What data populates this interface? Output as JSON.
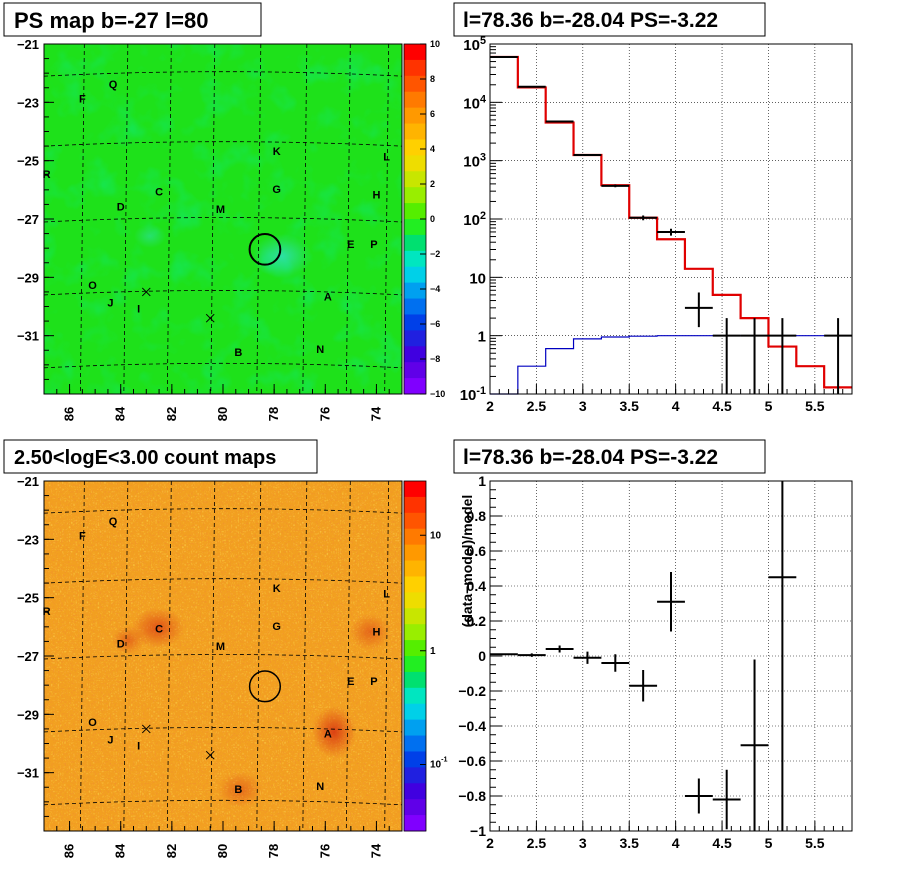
{
  "panels": {
    "top_left_title": "PS map b=-27 l=80",
    "top_right_title": "l=78.36 b=-28.04 PS=-3.22",
    "bottom_left_title": "2.50<logE<3.00 count maps",
    "bottom_right_title": "l=78.36 b=-28.04 PS=-3.22"
  },
  "chart_data": [
    {
      "type": "heatmap",
      "name": "PS map",
      "title": "PS map b=-27 l=80",
      "x_ticks": [
        "86",
        "84",
        "82",
        "80",
        "78",
        "76",
        "74"
      ],
      "y_ticks": [
        "-21",
        "-23",
        "-25",
        "-27",
        "-29",
        "-31"
      ],
      "xlim": [
        87,
        73
      ],
      "ylim": [
        -33,
        -21
      ],
      "colorbar_ticks": [
        "10",
        "8",
        "6",
        "4",
        "2",
        "0",
        "-2",
        "-4",
        "-6",
        "-8",
        "-10"
      ],
      "colorbar_range": [
        -10,
        10
      ],
      "source_labels": [
        {
          "label": "Q",
          "l": 84.3,
          "b": -22.5
        },
        {
          "label": "F",
          "l": 85.5,
          "b": -23.0
        },
        {
          "label": "K",
          "l": 77.9,
          "b": -24.8
        },
        {
          "label": "L",
          "l": 73.6,
          "b": -25.0
        },
        {
          "label": "R",
          "l": 86.9,
          "b": -25.6
        },
        {
          "label": "C",
          "l": 82.5,
          "b": -26.2
        },
        {
          "label": "G",
          "l": 77.9,
          "b": -26.1
        },
        {
          "label": "H",
          "l": 74.0,
          "b": -26.3
        },
        {
          "label": "D",
          "l": 84.0,
          "b": -26.7
        },
        {
          "label": "M",
          "l": 80.1,
          "b": -26.8
        },
        {
          "label": "E",
          "l": 75.0,
          "b": -28.0
        },
        {
          "label": "P",
          "l": 74.1,
          "b": -28.0
        },
        {
          "label": "O",
          "l": 85.1,
          "b": -29.4
        },
        {
          "label": "A",
          "l": 75.9,
          "b": -29.8
        },
        {
          "label": "J",
          "l": 84.4,
          "b": -30.0
        },
        {
          "label": "I",
          "l": 83.3,
          "b": -30.2
        },
        {
          "label": "B",
          "l": 79.4,
          "b": -31.7
        },
        {
          "label": "N",
          "l": 76.2,
          "b": -31.6
        }
      ],
      "crosses": [
        {
          "l": 83.0,
          "b": -29.5
        },
        {
          "l": 80.5,
          "b": -30.4
        }
      ],
      "circle": {
        "l": 78.36,
        "b": -28.04,
        "radius_deg": 0.6
      }
    },
    {
      "type": "line",
      "name": "counts spectrum",
      "title": "l=78.36 b=-28.04 PS=-3.22",
      "xlim": [
        2,
        5.9
      ],
      "ylim": [
        0.1,
        100000
      ],
      "ylog": true,
      "x_ticks": [
        "2",
        "2.5",
        "3",
        "3.5",
        "4",
        "4.5",
        "5",
        "5.5"
      ],
      "y_ticks": [
        "10^-1",
        "1",
        "10",
        "10^2",
        "10^3",
        "10^4",
        "10^5"
      ],
      "grid": true,
      "bin_edges": [
        2.0,
        2.3,
        2.6,
        2.9,
        3.2,
        3.5,
        3.8,
        4.1,
        4.4,
        4.7,
        5.0,
        5.3,
        5.6,
        5.9
      ],
      "model_total": [
        60000,
        18000,
        4500,
        1250,
        380,
        105,
        45,
        14,
        5,
        2,
        0.65,
        0.3,
        0.13
      ],
      "model_ps": [
        0.1,
        0.3,
        0.6,
        0.88,
        0.95,
        0.98,
        1.0,
        1.0,
        1.0,
        1.0,
        1.0,
        1.0,
        1.0
      ],
      "data_points": [
        {
          "x": 2.15,
          "y": 60000,
          "xerr": 0.15,
          "ylo": 59500,
          "yhi": 60500
        },
        {
          "x": 2.45,
          "y": 18500,
          "xerr": 0.15,
          "ylo": 18300,
          "yhi": 18700
        },
        {
          "x": 2.75,
          "y": 4700,
          "xerr": 0.15,
          "ylo": 4600,
          "yhi": 4800
        },
        {
          "x": 3.05,
          "y": 1250,
          "xerr": 0.15,
          "ylo": 1200,
          "yhi": 1300
        },
        {
          "x": 3.35,
          "y": 370,
          "xerr": 0.15,
          "ylo": 350,
          "yhi": 390
        },
        {
          "x": 3.65,
          "y": 105,
          "xerr": 0.15,
          "ylo": 95,
          "yhi": 115
        },
        {
          "x": 3.95,
          "y": 60,
          "xerr": 0.15,
          "ylo": 52,
          "yhi": 68
        },
        {
          "x": 4.25,
          "y": 3,
          "xerr": 0.15,
          "ylo": 1.4,
          "yhi": 5.5
        },
        {
          "x": 4.55,
          "y": 1,
          "xerr": 0.15,
          "ylo": 0.1,
          "yhi": 2.0
        },
        {
          "x": 4.85,
          "y": 1,
          "xerr": 0.15,
          "ylo": 0.1,
          "yhi": 2.0
        },
        {
          "x": 5.15,
          "y": 1,
          "xerr": 0.15,
          "ylo": 0.1,
          "yhi": 2.0
        },
        {
          "x": 5.75,
          "y": 1,
          "xerr": 0.15,
          "ylo": 0.1,
          "yhi": 2.0
        }
      ]
    },
    {
      "type": "heatmap",
      "name": "count map",
      "title": "2.50<logE<3.00 count maps",
      "x_ticks": [
        "86",
        "84",
        "82",
        "80",
        "78",
        "76",
        "74"
      ],
      "y_ticks": [
        "-21",
        "-23",
        "-25",
        "-27",
        "-29",
        "-31"
      ],
      "xlim": [
        87,
        73
      ],
      "ylim": [
        -33,
        -21
      ],
      "colorbar_ticks": [
        "10",
        "1",
        "10^-1"
      ],
      "colorbar_log": true
    },
    {
      "type": "scatter",
      "name": "residuals",
      "title": "l=78.36 b=-28.04 PS=-3.22",
      "ylabel": "(data-model)/model",
      "xlim": [
        2,
        5.9
      ],
      "ylim": [
        -1,
        1
      ],
      "x_ticks": [
        "2",
        "2.5",
        "3",
        "3.5",
        "4",
        "4.5",
        "5",
        "5.5"
      ],
      "y_ticks": [
        "1",
        "0.8",
        "0.6",
        "0.4",
        "0.2",
        "0",
        "-0.2",
        "-0.4",
        "-0.6",
        "-0.8",
        "-1"
      ],
      "grid": true,
      "points": [
        {
          "x": 2.15,
          "y": 0.01,
          "xerr": 0.15,
          "yerr": 0.005
        },
        {
          "x": 2.45,
          "y": 0.005,
          "xerr": 0.15,
          "yerr": 0.01
        },
        {
          "x": 2.75,
          "y": 0.04,
          "xerr": 0.15,
          "yerr": 0.02
        },
        {
          "x": 3.05,
          "y": -0.01,
          "xerr": 0.15,
          "yerr": 0.035
        },
        {
          "x": 3.35,
          "y": -0.04,
          "xerr": 0.15,
          "yerr": 0.05
        },
        {
          "x": 3.65,
          "y": -0.17,
          "xerr": 0.15,
          "yerr": 0.09
        },
        {
          "x": 3.95,
          "y": 0.31,
          "xerr": 0.15,
          "yerr": 0.17
        },
        {
          "x": 4.25,
          "y": -0.8,
          "xerr": 0.15,
          "yerr": 0.1
        },
        {
          "x": 4.55,
          "y": -0.82,
          "xerr": 0.15,
          "yerr": 0.17
        },
        {
          "x": 4.85,
          "y": -0.51,
          "xerr": 0.15,
          "yerr": 0.49
        },
        {
          "x": 5.15,
          "y": 0.45,
          "xerr": 0.15,
          "yerr": 1.45
        }
      ]
    }
  ],
  "colors": {
    "model_total": "#e00000",
    "model_ps": "#0000c0",
    "data": "#000000"
  }
}
